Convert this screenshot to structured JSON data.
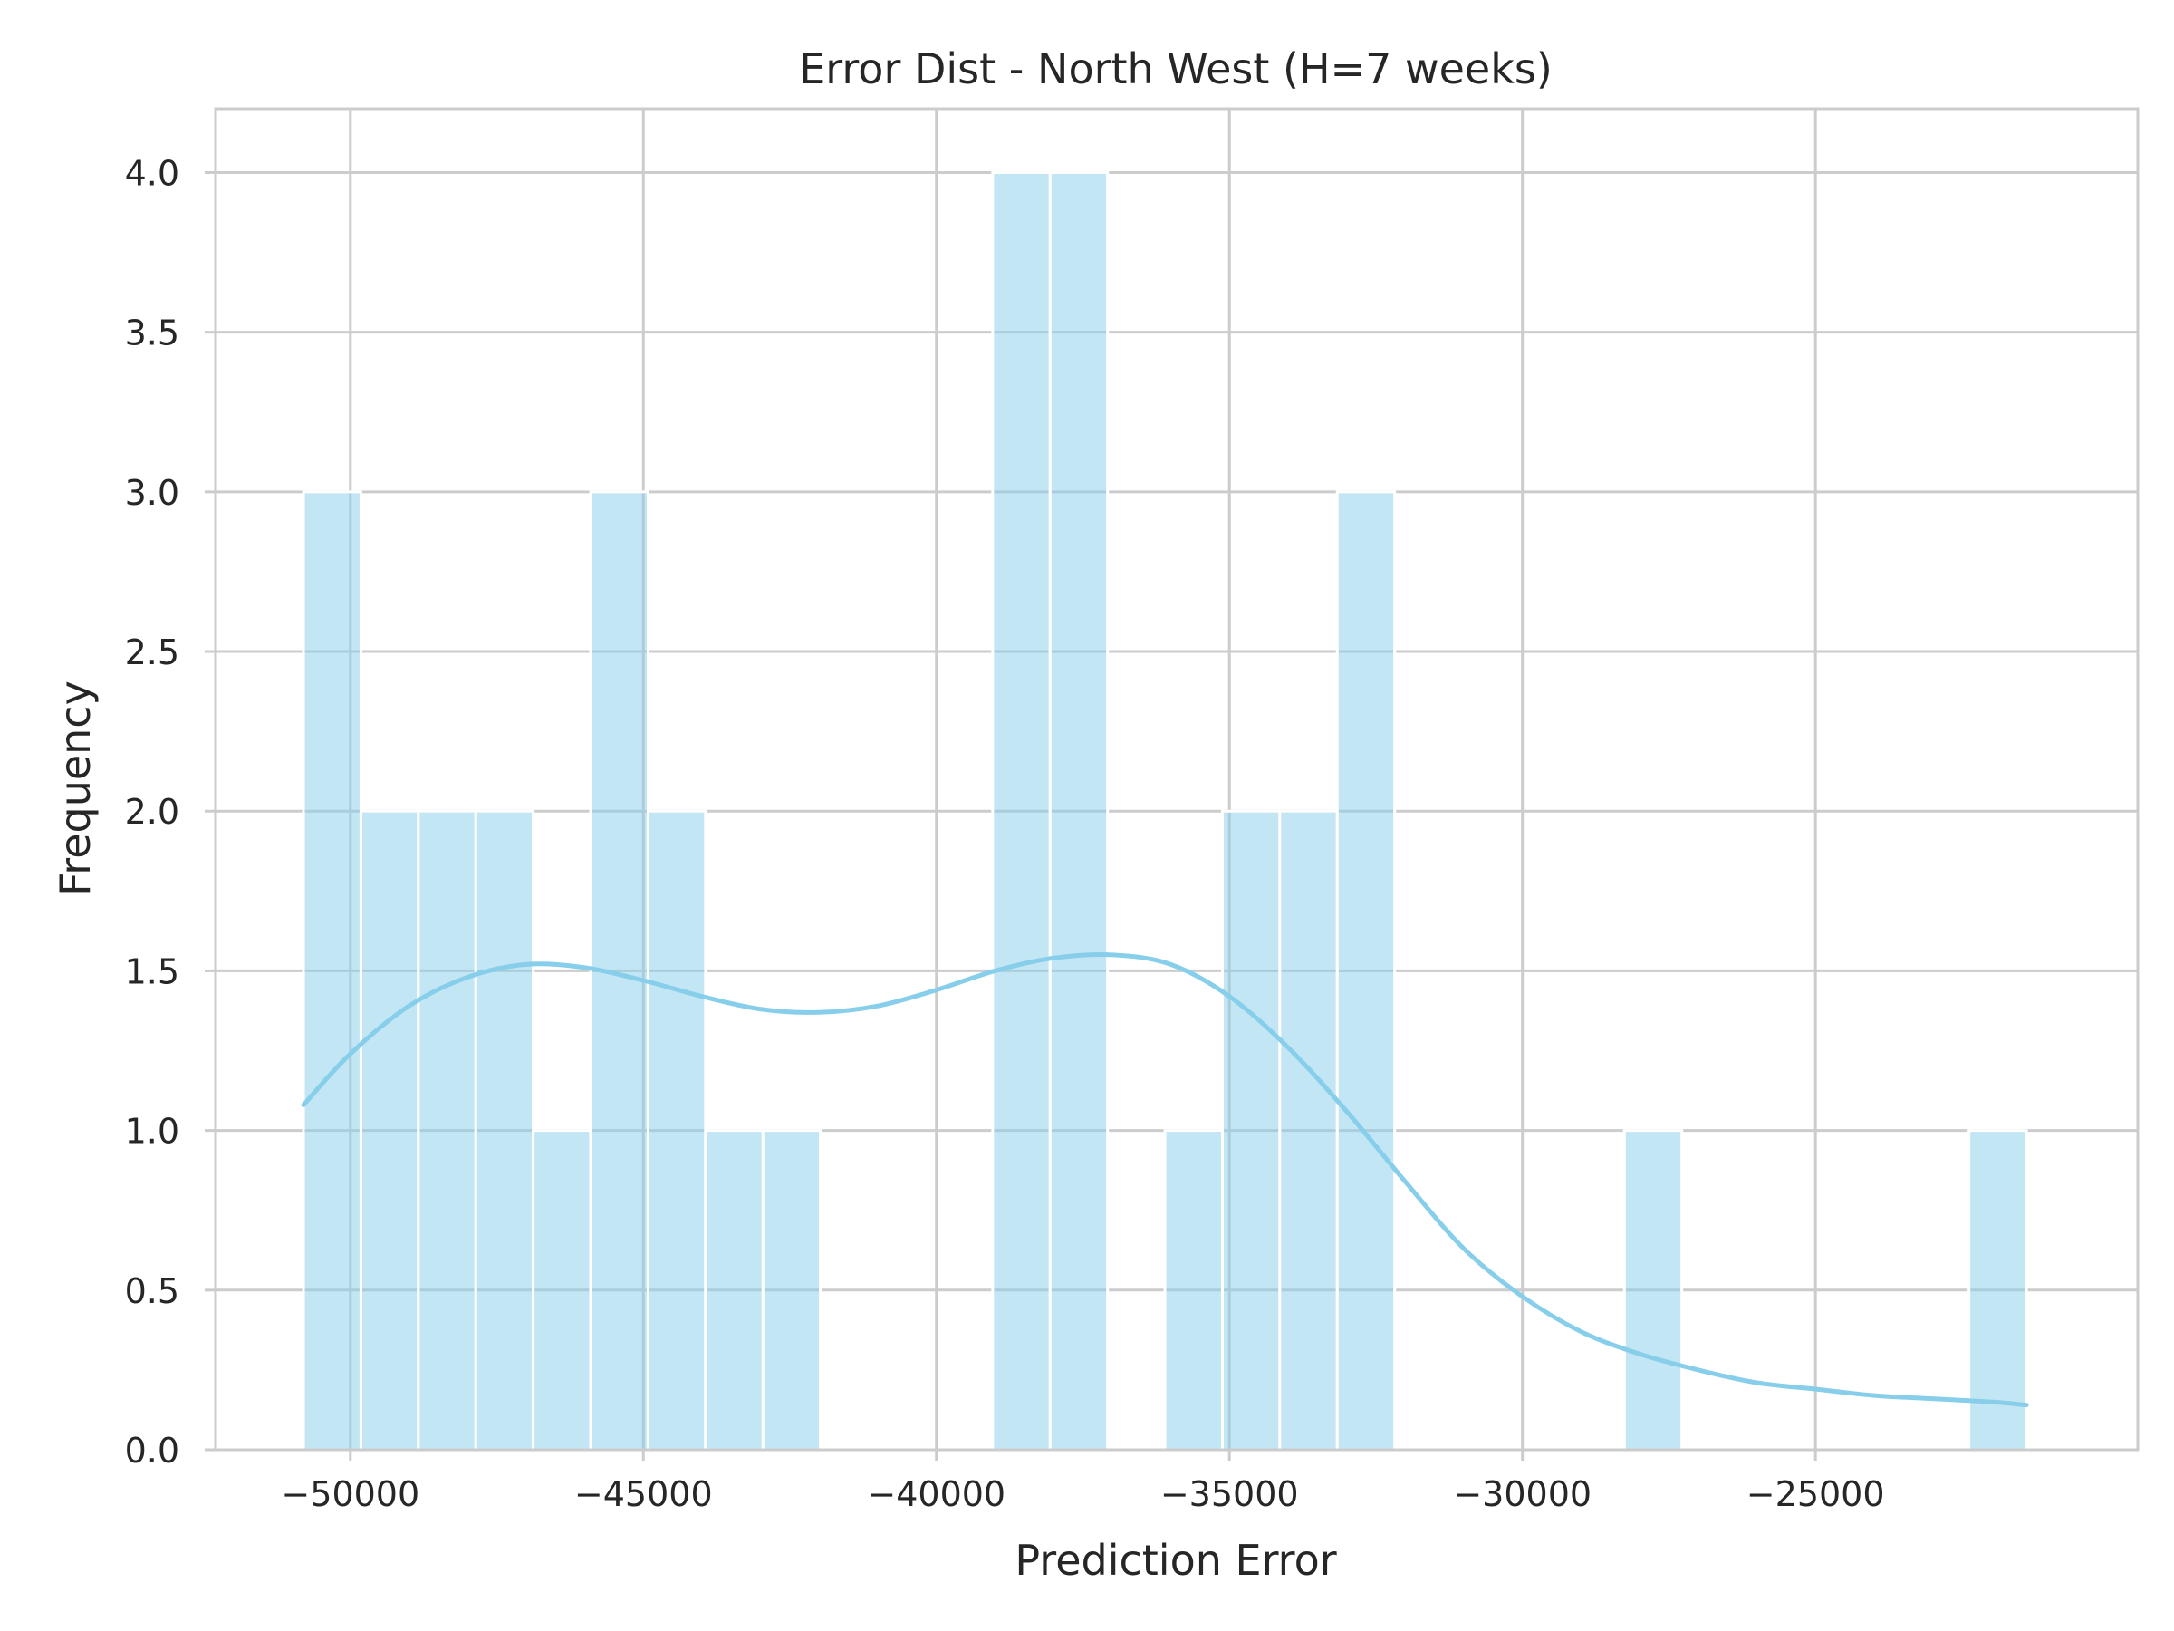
{
  "chart_data": {
    "type": "bar",
    "subtype": "histogram_with_kde",
    "title": "Error Dist - North West (H=7 weeks)",
    "xlabel": "Prediction Error",
    "ylabel": "Frequency",
    "xlim": [
      -52300,
      -19500
    ],
    "ylim": [
      0,
      4.2
    ],
    "xticks": [
      -50000,
      -45000,
      -40000,
      -35000,
      -30000,
      -25000
    ],
    "xtick_labels": [
      "−50000",
      "−45000",
      "−40000",
      "−35000",
      "−30000",
      "−25000"
    ],
    "yticks": [
      0,
      0.5,
      1,
      1.5,
      2,
      2.5,
      3,
      3.5,
      4
    ],
    "ytick_labels": [
      "0.0",
      "0.5",
      "1.0",
      "1.5",
      "2.0",
      "2.5",
      "3.0",
      "3.5",
      "4.0"
    ],
    "grid": true,
    "bin_edges": [
      -50800,
      -49820,
      -48840,
      -47860,
      -46880,
      -45900,
      -44920,
      -43940,
      -42960,
      -41980,
      -41000,
      -40020,
      -39040,
      -38060,
      -37080,
      -36100,
      -35120,
      -34140,
      -33160,
      -32180,
      -31200,
      -30220,
      -29240,
      -28260,
      -27280,
      -26300,
      -25320,
      -24340,
      -23360,
      -22380,
      -21400
    ],
    "values": [
      3,
      2,
      2,
      2,
      1,
      3,
      2,
      1,
      1,
      0,
      0,
      0,
      4,
      4,
      0,
      1,
      2,
      2,
      3,
      0,
      0,
      0,
      0,
      1,
      0,
      0,
      0,
      0,
      0,
      1
    ],
    "kde": {
      "x": [
        -50800,
        -50000,
        -49000,
        -48000,
        -47000,
        -46000,
        -45000,
        -44000,
        -43000,
        -42000,
        -41000,
        -40000,
        -39000,
        -38000,
        -37000,
        -36000,
        -35000,
        -34000,
        -33000,
        -32000,
        -31000,
        -30000,
        -29000,
        -28000,
        -27000,
        -26000,
        -25000,
        -24000,
        -23000,
        -22000,
        -21400
      ],
      "y": [
        1.08,
        1.24,
        1.39,
        1.48,
        1.52,
        1.51,
        1.47,
        1.42,
        1.38,
        1.37,
        1.39,
        1.44,
        1.5,
        1.54,
        1.55,
        1.52,
        1.42,
        1.26,
        1.06,
        0.84,
        0.63,
        0.48,
        0.37,
        0.3,
        0.25,
        0.21,
        0.19,
        0.17,
        0.16,
        0.15,
        0.14
      ]
    },
    "colors": {
      "bar_fill": "#87ceeb",
      "bar_opacity": 0.5,
      "kde_line": "#87ceeb",
      "grid": "#cccccc",
      "text": "#262626"
    }
  }
}
